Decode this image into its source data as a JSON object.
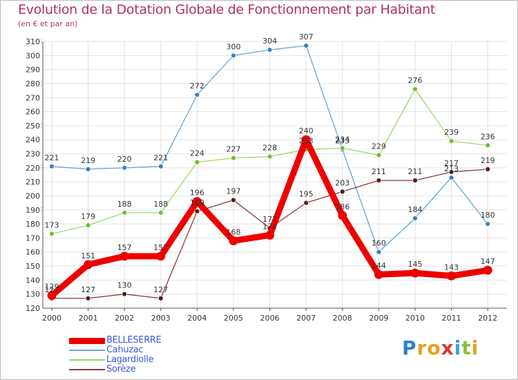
{
  "title": "Evolution de la Dotation Globale de Fonctionnement par Habitant",
  "subtitle": "(en € et par an)",
  "logo": {
    "letters": [
      "P",
      "r",
      "o",
      "x",
      "i",
      "t",
      "i"
    ],
    "colors": [
      "#2b7fd6",
      "#e8a020",
      "#e8a020",
      "#d83a2a",
      "#3aa0e0",
      "#8ac030",
      "#e8a020"
    ]
  },
  "chart_data": {
    "type": "line",
    "title": "Evolution de la Dotation Globale de Fonctionnement par Habitant",
    "ylabel": "(en € et par an)",
    "x": [
      "2000",
      "2001",
      "2002",
      "2003",
      "2004",
      "2005",
      "2006",
      "2007",
      "2008",
      "2009",
      "2010",
      "2011",
      "2012"
    ],
    "ylim": [
      120,
      310
    ],
    "yticks": [
      120,
      130,
      140,
      150,
      160,
      170,
      180,
      190,
      200,
      210,
      220,
      230,
      240,
      250,
      260,
      270,
      280,
      290,
      300,
      310
    ],
    "grid": true,
    "series": [
      {
        "name": "Cahuzac",
        "color": "#6aa4d2",
        "marker": "#3d7fc0",
        "values": [
          221,
          219,
          220,
          221,
          272,
          300,
          304,
          307,
          233,
          160,
          184,
          213,
          180
        ]
      },
      {
        "name": "Lagardiolle",
        "color": "#9ad86a",
        "marker": "#6ec030",
        "values": [
          173,
          179,
          188,
          188,
          224,
          227,
          228,
          233,
          234,
          229,
          276,
          239,
          236
        ]
      },
      {
        "name": "Sorèze",
        "color": "#8a3a3a",
        "marker": "#5a1a1a",
        "values": [
          127,
          127,
          130,
          127,
          189,
          197,
          177,
          195,
          203,
          211,
          211,
          217,
          219
        ]
      },
      {
        "name": "BELLESERRE",
        "color": "#ee0000",
        "marker": "#ee0000",
        "thick": true,
        "values": [
          129,
          151,
          157,
          157,
          196,
          168,
          172,
          240,
          186,
          144,
          145,
          143,
          147
        ]
      }
    ],
    "legend_order": [
      "BELLESERRE",
      "Cahuzac",
      "Lagardiolle",
      "Sorèze"
    ]
  }
}
